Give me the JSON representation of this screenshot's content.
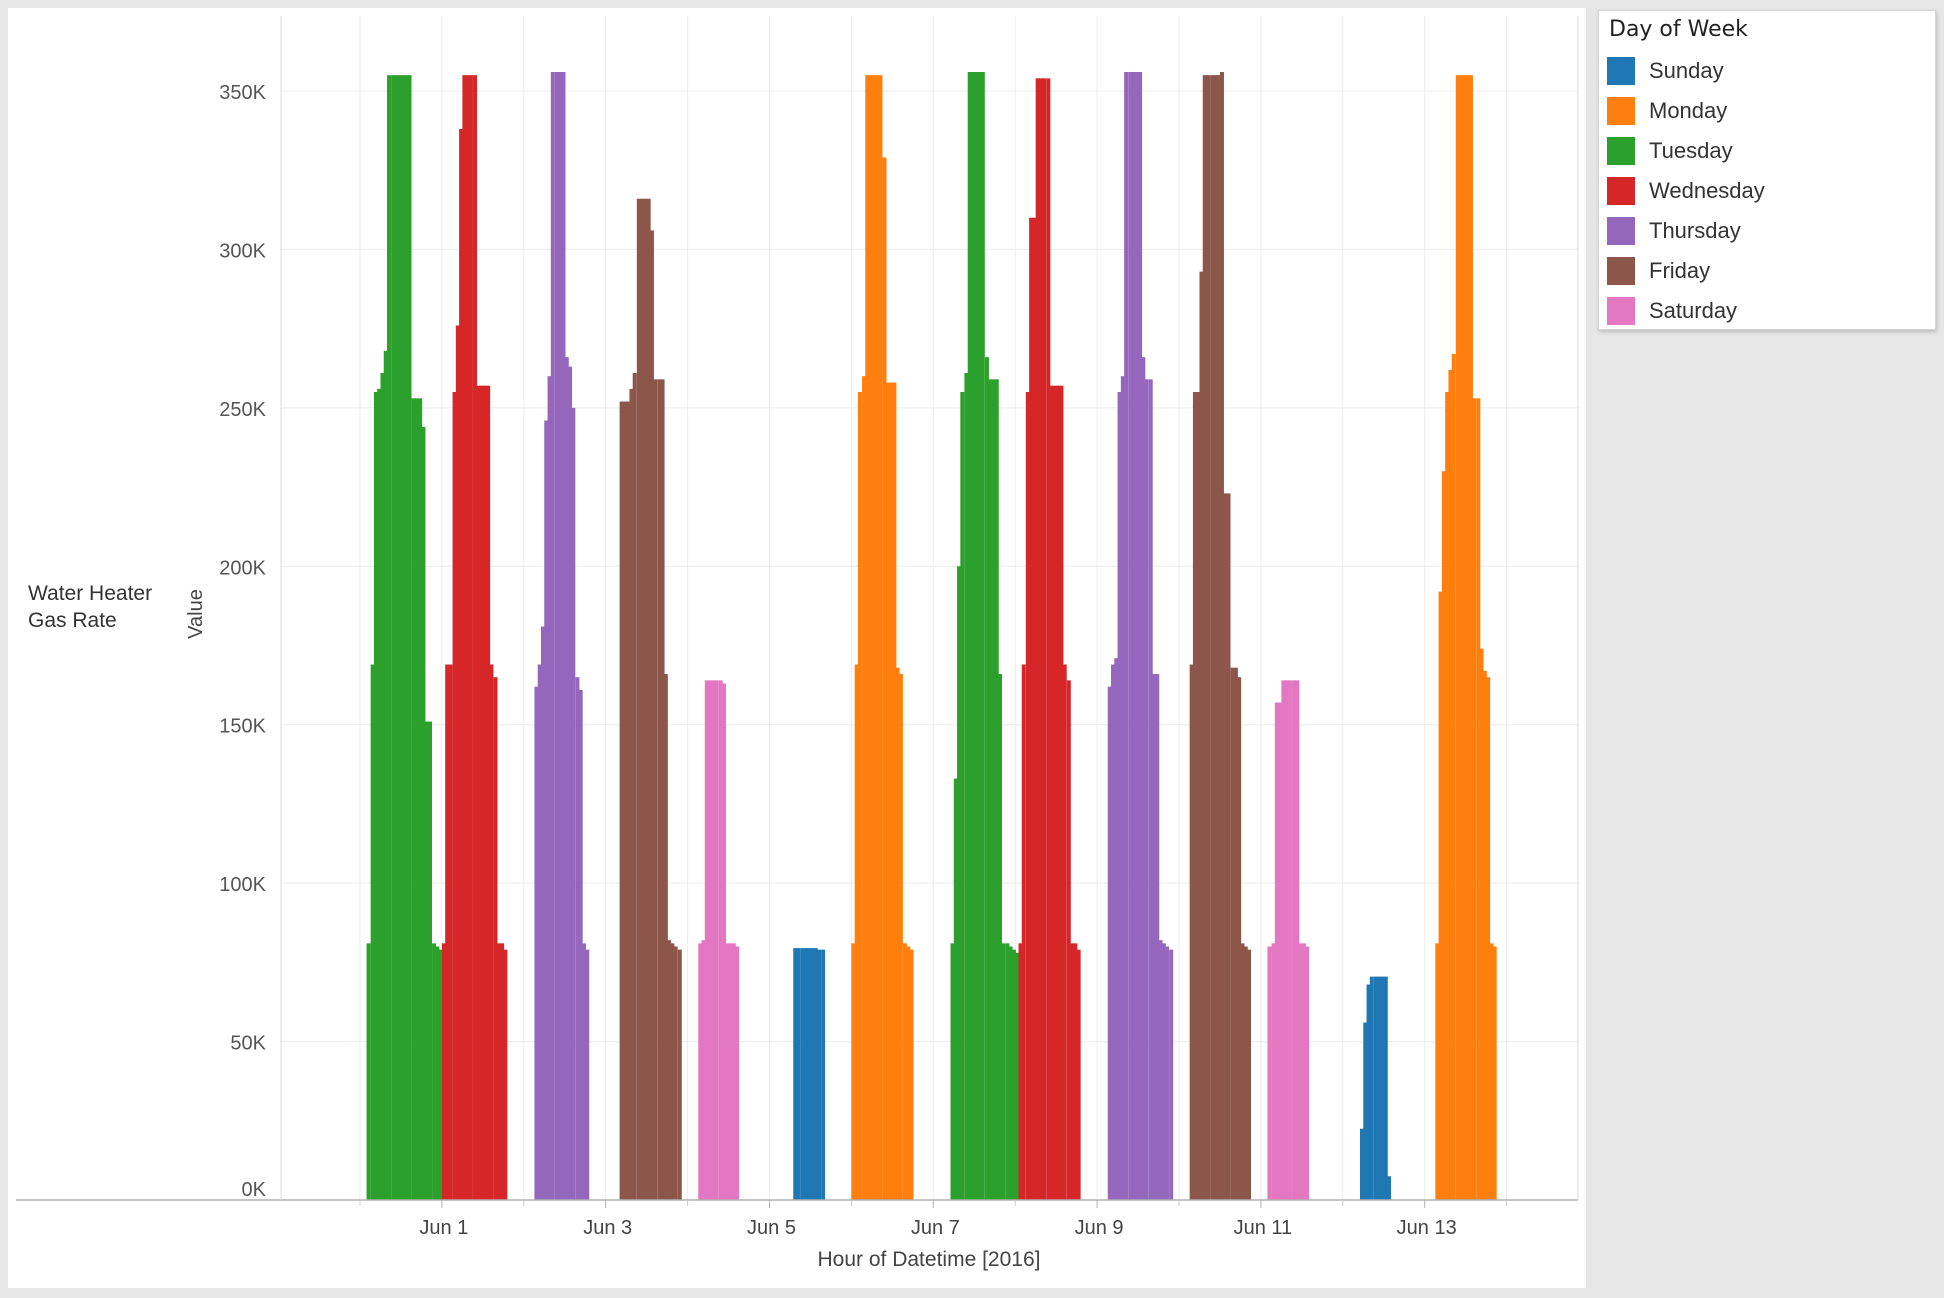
{
  "row_header": [
    "Water Heater",
    "Gas Rate"
  ],
  "legend": {
    "title": "Day of Week",
    "items": [
      {
        "label": "Sunday",
        "color": "#1f77b4"
      },
      {
        "label": "Monday",
        "color": "#ff7f0e"
      },
      {
        "label": "Tuesday",
        "color": "#2ca02c"
      },
      {
        "label": "Wednesday",
        "color": "#d62728"
      },
      {
        "label": "Thursday",
        "color": "#9467bd"
      },
      {
        "label": "Friday",
        "color": "#8c564b"
      },
      {
        "label": "Saturday",
        "color": "#e377c2"
      }
    ]
  },
  "chart_data": {
    "type": "bar",
    "title": "",
    "xlabel": "Hour of Datetime [2016]",
    "ylabel": "Value",
    "ylim": [
      0,
      365000
    ],
    "y_ticks": [
      0,
      50000,
      100000,
      150000,
      200000,
      250000,
      300000,
      350000
    ],
    "y_tick_labels": [
      "0K",
      "50K",
      "100K",
      "150K",
      "200K",
      "250K",
      "300K",
      "350K"
    ],
    "x_tick_labels": [
      "Jun 1",
      "Jun 3",
      "Jun 5",
      "Jun 7",
      "Jun 9",
      "Jun 11",
      "Jun 13"
    ],
    "grid": true,
    "legend_position": "right",
    "x_unit": "days since 2016-05-31 00:00 (hourly bars)",
    "series": [
      {
        "name": "Tuesday",
        "date": "2016-05-31",
        "color": "#2ca02c",
        "bars": [
          [
            0.08,
            81000
          ],
          [
            0.13,
            169000
          ],
          [
            0.17,
            255000
          ],
          [
            0.21,
            256000
          ],
          [
            0.25,
            261000
          ],
          [
            0.29,
            268000
          ],
          [
            0.33,
            355000
          ],
          [
            0.38,
            355000
          ],
          [
            0.42,
            355000
          ],
          [
            0.46,
            355000
          ],
          [
            0.5,
            355000
          ],
          [
            0.54,
            355000
          ],
          [
            0.58,
            355000
          ],
          [
            0.63,
            253000
          ],
          [
            0.67,
            253000
          ],
          [
            0.71,
            253000
          ],
          [
            0.75,
            244000
          ],
          [
            0.79,
            151000
          ],
          [
            0.83,
            151000
          ],
          [
            0.88,
            81000
          ],
          [
            0.92,
            80000
          ],
          [
            0.96,
            79000
          ]
        ]
      },
      {
        "name": "Wednesday",
        "date": "2016-06-01",
        "color": "#d62728",
        "bars": [
          [
            0.0,
            81000
          ],
          [
            0.04,
            169000
          ],
          [
            0.08,
            169000
          ],
          [
            0.13,
            255000
          ],
          [
            0.17,
            276000
          ],
          [
            0.21,
            338000
          ],
          [
            0.25,
            355000
          ],
          [
            0.29,
            355000
          ],
          [
            0.33,
            355000
          ],
          [
            0.38,
            355000
          ],
          [
            0.42,
            257000
          ],
          [
            0.46,
            257000
          ],
          [
            0.5,
            257000
          ],
          [
            0.54,
            257000
          ],
          [
            0.58,
            169000
          ],
          [
            0.63,
            165000
          ],
          [
            0.67,
            81000
          ],
          [
            0.71,
            81000
          ],
          [
            0.75,
            79000
          ]
        ]
      },
      {
        "name": "Thursday",
        "date": "2016-06-02",
        "color": "#9467bd",
        "bars": [
          [
            0.13,
            162000
          ],
          [
            0.17,
            169000
          ],
          [
            0.21,
            181000
          ],
          [
            0.25,
            246000
          ],
          [
            0.29,
            260000
          ],
          [
            0.33,
            356000
          ],
          [
            0.38,
            356000
          ],
          [
            0.42,
            356000
          ],
          [
            0.46,
            356000
          ],
          [
            0.5,
            266000
          ],
          [
            0.54,
            263000
          ],
          [
            0.58,
            250000
          ],
          [
            0.63,
            165000
          ],
          [
            0.67,
            161000
          ],
          [
            0.71,
            81000
          ],
          [
            0.75,
            79000
          ]
        ]
      },
      {
        "name": "Friday",
        "date": "2016-06-03",
        "color": "#8c564b",
        "bars": [
          [
            0.17,
            252000
          ],
          [
            0.21,
            252000
          ],
          [
            0.25,
            252000
          ],
          [
            0.29,
            256000
          ],
          [
            0.33,
            261000
          ],
          [
            0.38,
            316000
          ],
          [
            0.42,
            316000
          ],
          [
            0.46,
            316000
          ],
          [
            0.5,
            316000
          ],
          [
            0.54,
            306000
          ],
          [
            0.58,
            259000
          ],
          [
            0.63,
            259000
          ],
          [
            0.67,
            259000
          ],
          [
            0.71,
            166000
          ],
          [
            0.75,
            82000
          ],
          [
            0.79,
            81000
          ],
          [
            0.83,
            80000
          ],
          [
            0.88,
            79000
          ]
        ]
      },
      {
        "name": "Saturday",
        "date": "2016-06-04",
        "color": "#e377c2",
        "bars": [
          [
            0.13,
            81000
          ],
          [
            0.17,
            82000
          ],
          [
            0.21,
            164000
          ],
          [
            0.25,
            164000
          ],
          [
            0.29,
            164000
          ],
          [
            0.33,
            164000
          ],
          [
            0.38,
            164000
          ],
          [
            0.42,
            163000
          ],
          [
            0.46,
            81000
          ],
          [
            0.5,
            81000
          ],
          [
            0.54,
            81000
          ],
          [
            0.58,
            80000
          ]
        ]
      },
      {
        "name": "Sunday",
        "date": "2016-06-05",
        "color": "#1f77b4",
        "bars": [
          [
            0.29,
            79500
          ],
          [
            0.33,
            79500
          ],
          [
            0.38,
            79500
          ],
          [
            0.42,
            79500
          ],
          [
            0.46,
            79500
          ],
          [
            0.5,
            79500
          ],
          [
            0.54,
            79500
          ],
          [
            0.58,
            79000
          ],
          [
            0.63,
            79000
          ]
        ]
      },
      {
        "name": "Monday",
        "date": "2016-06-06",
        "color": "#ff7f0e",
        "bars": [
          [
            0.0,
            81000
          ],
          [
            0.04,
            169000
          ],
          [
            0.08,
            255000
          ],
          [
            0.13,
            260000
          ],
          [
            0.17,
            355000
          ],
          [
            0.21,
            355000
          ],
          [
            0.25,
            355000
          ],
          [
            0.29,
            355000
          ],
          [
            0.33,
            355000
          ],
          [
            0.38,
            329000
          ],
          [
            0.42,
            258000
          ],
          [
            0.46,
            258000
          ],
          [
            0.5,
            258000
          ],
          [
            0.54,
            168000
          ],
          [
            0.58,
            166000
          ],
          [
            0.63,
            81000
          ],
          [
            0.67,
            80000
          ],
          [
            0.71,
            79000
          ]
        ]
      },
      {
        "name": "Tuesday",
        "date": "2016-06-07",
        "color": "#2ca02c",
        "bars": [
          [
            0.21,
            81000
          ],
          [
            0.25,
            133000
          ],
          [
            0.29,
            200000
          ],
          [
            0.33,
            255000
          ],
          [
            0.38,
            261000
          ],
          [
            0.42,
            356000
          ],
          [
            0.46,
            356000
          ],
          [
            0.5,
            356000
          ],
          [
            0.54,
            356000
          ],
          [
            0.58,
            356000
          ],
          [
            0.63,
            266000
          ],
          [
            0.67,
            259000
          ],
          [
            0.71,
            259000
          ],
          [
            0.75,
            259000
          ],
          [
            0.79,
            166000
          ],
          [
            0.83,
            81000
          ],
          [
            0.88,
            81000
          ],
          [
            0.92,
            80000
          ],
          [
            0.96,
            79000
          ],
          [
            1.0,
            78000
          ]
        ]
      },
      {
        "name": "Wednesday",
        "date": "2016-06-08",
        "color": "#d62728",
        "bars": [
          [
            0.04,
            81000
          ],
          [
            0.08,
            169000
          ],
          [
            0.13,
            255000
          ],
          [
            0.17,
            310000
          ],
          [
            0.21,
            310000
          ],
          [
            0.25,
            354000
          ],
          [
            0.29,
            354000
          ],
          [
            0.33,
            354000
          ],
          [
            0.38,
            354000
          ],
          [
            0.42,
            257000
          ],
          [
            0.46,
            257000
          ],
          [
            0.5,
            257000
          ],
          [
            0.54,
            257000
          ],
          [
            0.58,
            169000
          ],
          [
            0.63,
            164000
          ],
          [
            0.67,
            81000
          ],
          [
            0.71,
            81000
          ],
          [
            0.75,
            79000
          ]
        ]
      },
      {
        "name": "Thursday",
        "date": "2016-06-09",
        "color": "#9467bd",
        "bars": [
          [
            0.13,
            162000
          ],
          [
            0.17,
            169000
          ],
          [
            0.21,
            171000
          ],
          [
            0.25,
            255000
          ],
          [
            0.29,
            260000
          ],
          [
            0.33,
            356000
          ],
          [
            0.38,
            356000
          ],
          [
            0.42,
            356000
          ],
          [
            0.46,
            356000
          ],
          [
            0.5,
            356000
          ],
          [
            0.54,
            266000
          ],
          [
            0.58,
            259000
          ],
          [
            0.63,
            259000
          ],
          [
            0.67,
            166000
          ],
          [
            0.71,
            166000
          ],
          [
            0.75,
            82000
          ],
          [
            0.79,
            81000
          ],
          [
            0.83,
            80000
          ],
          [
            0.88,
            79000
          ]
        ]
      },
      {
        "name": "Friday",
        "date": "2016-06-10",
        "color": "#8c564b",
        "bars": [
          [
            0.13,
            169000
          ],
          [
            0.17,
            255000
          ],
          [
            0.21,
            255000
          ],
          [
            0.25,
            293000
          ],
          [
            0.29,
            355000
          ],
          [
            0.33,
            355000
          ],
          [
            0.38,
            355000
          ],
          [
            0.42,
            355000
          ],
          [
            0.46,
            355000
          ],
          [
            0.5,
            356000
          ],
          [
            0.54,
            223000
          ],
          [
            0.58,
            223000
          ],
          [
            0.63,
            168000
          ],
          [
            0.67,
            168000
          ],
          [
            0.71,
            165000
          ],
          [
            0.75,
            81000
          ],
          [
            0.79,
            80000
          ],
          [
            0.83,
            79000
          ]
        ]
      },
      {
        "name": "Saturday",
        "date": "2016-06-11",
        "color": "#e377c2",
        "bars": [
          [
            0.08,
            80000
          ],
          [
            0.13,
            81000
          ],
          [
            0.17,
            157000
          ],
          [
            0.21,
            157000
          ],
          [
            0.25,
            164000
          ],
          [
            0.29,
            164000
          ],
          [
            0.33,
            164000
          ],
          [
            0.38,
            164000
          ],
          [
            0.42,
            164000
          ],
          [
            0.46,
            81000
          ],
          [
            0.5,
            81000
          ],
          [
            0.54,
            80000
          ]
        ]
      },
      {
        "name": "Sunday",
        "date": "2016-06-12",
        "color": "#1f77b4",
        "bars": [
          [
            0.21,
            22500
          ],
          [
            0.25,
            56000
          ],
          [
            0.29,
            68000
          ],
          [
            0.33,
            70500
          ],
          [
            0.38,
            70500
          ],
          [
            0.42,
            70500
          ],
          [
            0.46,
            70500
          ],
          [
            0.5,
            70500
          ],
          [
            0.54,
            7500
          ]
        ]
      },
      {
        "name": "Monday",
        "date": "2016-06-13",
        "color": "#ff7f0e",
        "bars": [
          [
            0.13,
            81000
          ],
          [
            0.17,
            192000
          ],
          [
            0.21,
            230000
          ],
          [
            0.25,
            255000
          ],
          [
            0.29,
            262000
          ],
          [
            0.33,
            267000
          ],
          [
            0.38,
            355000
          ],
          [
            0.42,
            355000
          ],
          [
            0.46,
            355000
          ],
          [
            0.5,
            355000
          ],
          [
            0.54,
            355000
          ],
          [
            0.58,
            253000
          ],
          [
            0.63,
            253000
          ],
          [
            0.67,
            174000
          ],
          [
            0.71,
            167000
          ],
          [
            0.75,
            165000
          ],
          [
            0.79,
            81000
          ],
          [
            0.83,
            80000
          ]
        ]
      }
    ]
  }
}
